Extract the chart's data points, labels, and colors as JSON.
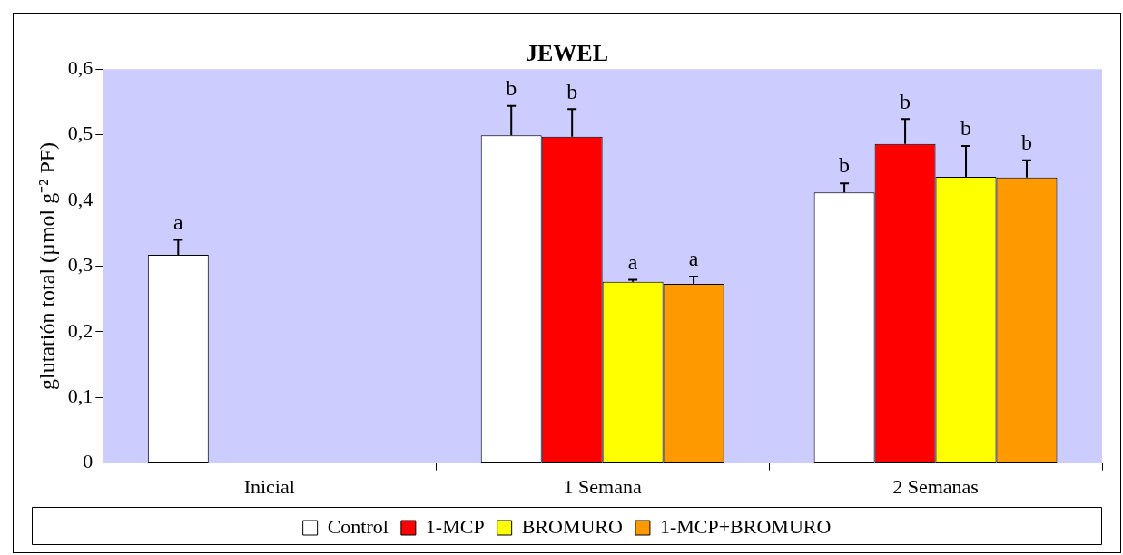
{
  "chart_data": {
    "type": "bar",
    "title": "JEWEL",
    "ylabel": "glutatión total (µmol g⁻² PF)",
    "categories": [
      "Inicial",
      "1 Semana",
      "2 Semanas"
    ],
    "ylim": [
      0,
      0.6
    ],
    "yticks": [
      {
        "value": 0,
        "label": "0"
      },
      {
        "value": 0.1,
        "label": "0,1"
      },
      {
        "value": 0.2,
        "label": "0,2"
      },
      {
        "value": 0.3,
        "label": "0,3"
      },
      {
        "value": 0.4,
        "label": "0,4"
      },
      {
        "value": 0.5,
        "label": "0,5"
      },
      {
        "value": 0.6,
        "label": "0,6"
      }
    ],
    "grid": false,
    "legend": "bottom",
    "series": [
      {
        "name": "Control",
        "color": "#ffffff",
        "values": [
          0.317,
          0.499,
          0.412
        ],
        "errors": [
          [
            0.317,
            0.34
          ],
          [
            0.499,
            0.544
          ],
          [
            0.412,
            0.426
          ]
        ],
        "value_labels": [
          "a",
          "b",
          "b"
        ]
      },
      {
        "name": "1-MCP",
        "color": "#ff0000",
        "values": [
          null,
          0.497,
          0.486
        ],
        "errors": [
          null,
          [
            0.497,
            0.539
          ],
          [
            0.486,
            0.524
          ]
        ],
        "value_labels": [
          null,
          "b",
          "b"
        ]
      },
      {
        "name": "BROMURO",
        "color": "#ffff00",
        "values": [
          null,
          0.276,
          0.436
        ],
        "errors": [
          null,
          [
            0.276,
            0.279
          ],
          [
            0.436,
            0.483
          ]
        ],
        "value_labels": [
          null,
          "a",
          "b"
        ]
      },
      {
        "name": "1-MCP+BROMURO",
        "color": "#ff9900",
        "values": [
          null,
          0.273,
          0.435
        ],
        "errors": [
          null,
          [
            0.273,
            0.284
          ],
          [
            0.435,
            0.461
          ]
        ],
        "value_labels": [
          null,
          "a",
          "b"
        ]
      }
    ]
  }
}
